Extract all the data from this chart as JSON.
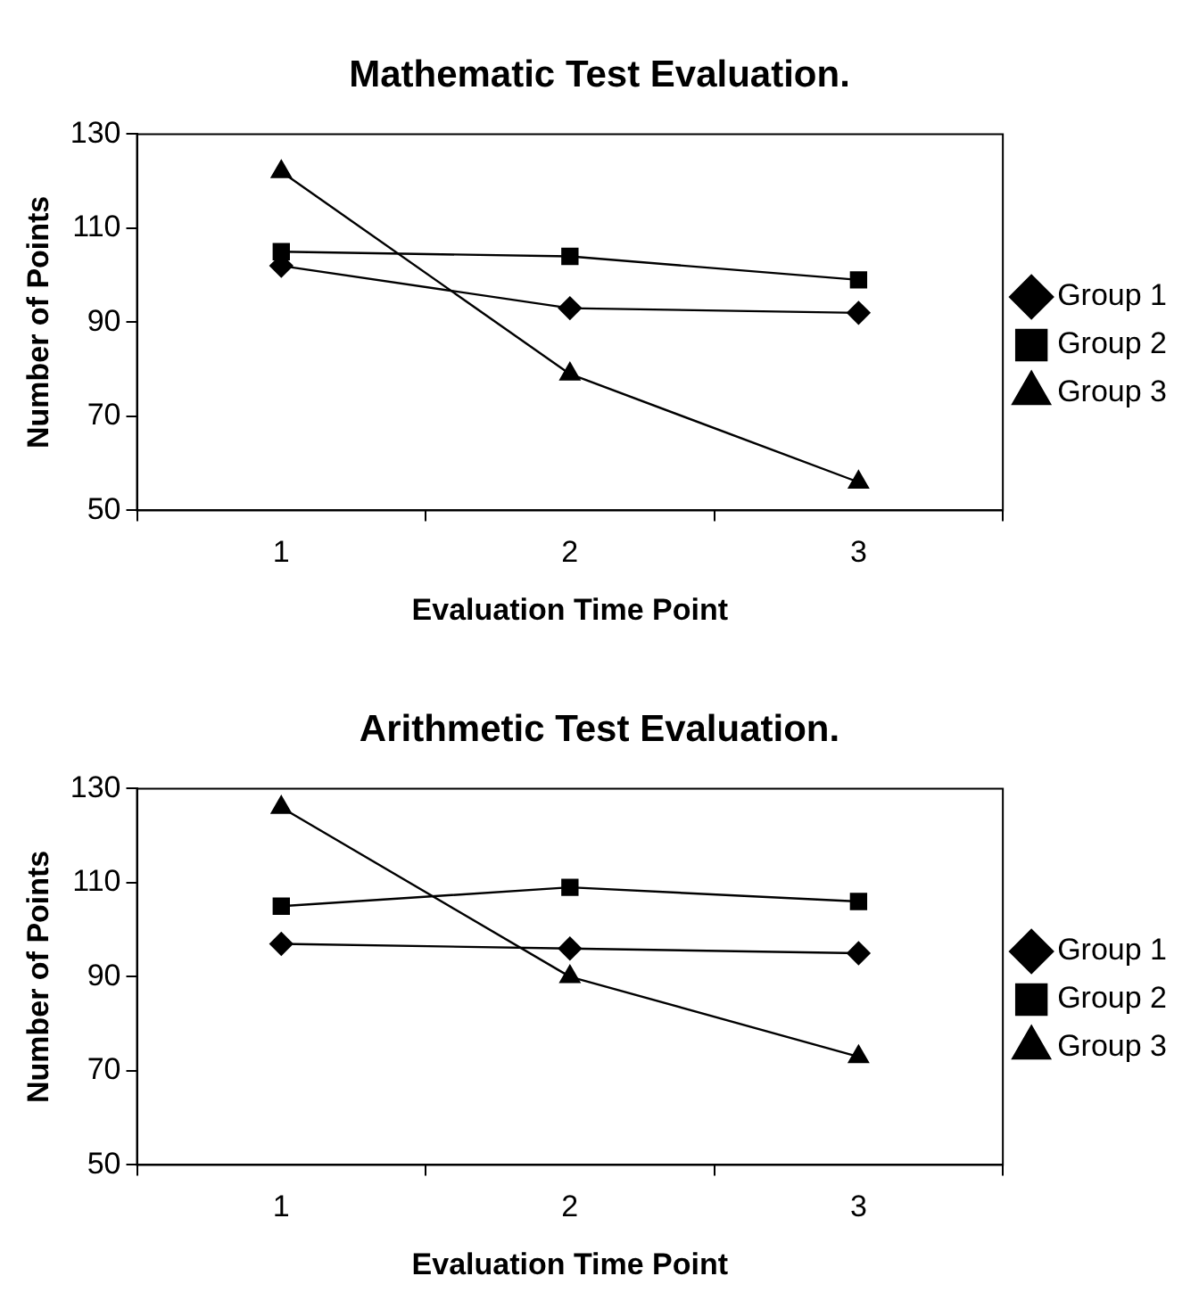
{
  "chart_data": [
    {
      "type": "line",
      "title": "Mathematic Test Evaluation.",
      "xlabel": "Evaluation Time Point",
      "ylabel": "Number of Points",
      "categories": [
        "1",
        "2",
        "3"
      ],
      "ylim": [
        50,
        130
      ],
      "yticks": [
        50,
        70,
        90,
        110,
        130
      ],
      "grid": false,
      "legend": "right",
      "line_style": "solid",
      "series": [
        {
          "name": "Group 1",
          "color": "#000000",
          "marker": "diamond",
          "values": [
            102,
            93,
            92
          ]
        },
        {
          "name": "Group 2",
          "color": "#000000",
          "marker": "square",
          "values": [
            105,
            104,
            99
          ]
        },
        {
          "name": "Group 3",
          "color": "#000000",
          "marker": "triangle",
          "values": [
            122,
            79,
            56
          ]
        }
      ]
    },
    {
      "type": "line",
      "title": "Arithmetic Test Evaluation.",
      "xlabel": "Evaluation Time Point",
      "ylabel": "Number of Points",
      "categories": [
        "1",
        "2",
        "3"
      ],
      "ylim": [
        50,
        130
      ],
      "yticks": [
        50,
        70,
        90,
        110,
        130
      ],
      "grid": false,
      "legend": "right",
      "line_style": "solid",
      "series": [
        {
          "name": "Group 1",
          "color": "#000000",
          "marker": "diamond",
          "values": [
            97,
            96,
            95
          ]
        },
        {
          "name": "Group 2",
          "color": "#000000",
          "marker": "square",
          "values": [
            105,
            109,
            106
          ]
        },
        {
          "name": "Group 3",
          "color": "#000000",
          "marker": "triangle",
          "values": [
            126,
            90,
            73
          ]
        }
      ]
    }
  ]
}
